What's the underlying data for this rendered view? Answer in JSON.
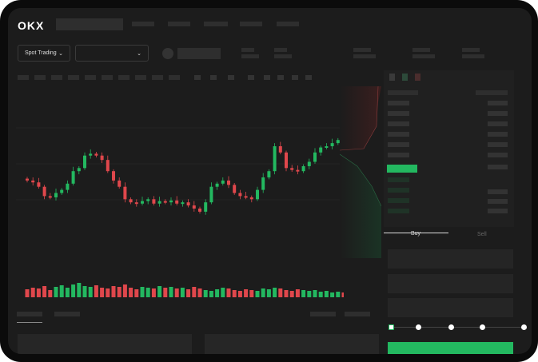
{
  "header": {
    "logo": "OKX",
    "mode_select": "Spot Trading",
    "pair_select": ""
  },
  "chart": {
    "candles_close": [
      95,
      92,
      85,
      70,
      68,
      75,
      80,
      90,
      110,
      115,
      135,
      138,
      135,
      128,
      110,
      95,
      85,
      65,
      60,
      58,
      62,
      65,
      58,
      62,
      60,
      63,
      58,
      60,
      55,
      50,
      45,
      60,
      85,
      90,
      95,
      88,
      75,
      70,
      68,
      65,
      80,
      100,
      110,
      150,
      140,
      115,
      112,
      110,
      118,
      125,
      140,
      148,
      150,
      155,
      160,
      150,
      152
    ],
    "volumes": [
      10,
      12,
      11,
      14,
      9,
      13,
      15,
      12,
      16,
      18,
      14,
      13,
      15,
      12,
      11,
      14,
      13,
      16,
      12,
      10,
      13,
      12,
      11,
      14,
      12,
      13,
      11,
      12,
      10,
      13,
      11,
      9,
      8,
      10,
      12,
      11,
      9,
      8,
      10,
      9,
      8,
      11,
      10,
      12,
      11,
      9,
      8,
      10,
      9,
      8,
      9,
      7,
      8,
      6,
      7,
      6,
      5
    ],
    "up_color": "#23b860",
    "down_color": "#e0474c"
  },
  "order_form": {
    "tab_buy": "Buy",
    "tab_sell": "Sell",
    "slider_percent": 0
  },
  "colors": {
    "accent": "#23b860",
    "bg": "#1c1c1c"
  }
}
